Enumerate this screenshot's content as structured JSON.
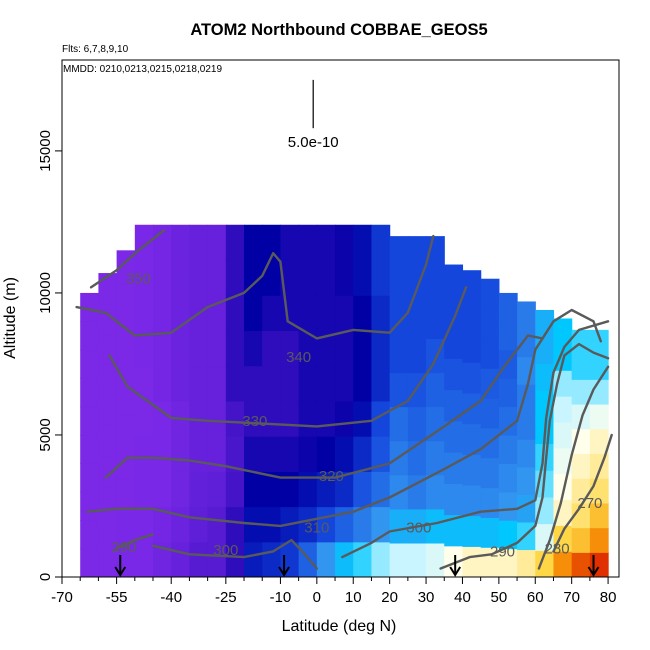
{
  "chart_data": {
    "type": "heatmap",
    "title": "ATOM2 Northbound COBBAE_GEOS5",
    "flights_note": "Flts: 6,7,8,9,10",
    "dates_note": "MMDD: 0210,0213,0215,0218,0219",
    "xlabel": "Latitude (deg N)",
    "ylabel": "Altitude (m)",
    "xlim": [
      -70,
      83
    ],
    "ylim": [
      0,
      18200
    ],
    "xticks": [
      -70,
      -55,
      -40,
      -25,
      -10,
      0,
      10,
      20,
      30,
      40,
      50,
      60,
      70,
      80
    ],
    "xticks_minor": [
      -65,
      -60,
      -50,
      -45,
      -35,
      -30,
      -20,
      -15,
      -5,
      5,
      15,
      25,
      35,
      45,
      55,
      65,
      75
    ],
    "yticks": [
      0,
      5000,
      10000,
      15000
    ],
    "scale_bar": {
      "label": "5.0e-10",
      "x": -1,
      "y_bottom": 15800,
      "y_top": 17500
    },
    "arrows_latitude": [
      -54,
      -9,
      38,
      76
    ],
    "columns": [
      {
        "x": [
          -65,
          -60
        ],
        "top": 10000,
        "v": [
          0.14,
          0.14,
          0.14,
          0.14,
          0.14,
          0.14,
          0.14,
          0.14,
          0.14,
          0.14
        ]
      },
      {
        "x": [
          -60,
          -55
        ],
        "top": 10700,
        "v": [
          0.14,
          0.14,
          0.14,
          0.14,
          0.14,
          0.14,
          0.14,
          0.14,
          0.14,
          0.14
        ]
      },
      {
        "x": [
          -55,
          -50
        ],
        "top": 11500,
        "v": [
          0.15,
          0.15,
          0.14,
          0.14,
          0.14,
          0.14,
          0.14,
          0.14,
          0.14,
          0.14
        ]
      },
      {
        "x": [
          -50,
          -45
        ],
        "top": 12400,
        "v": [
          0.16,
          0.16,
          0.15,
          0.15,
          0.14,
          0.14,
          0.15,
          0.15,
          0.15,
          0.15
        ]
      },
      {
        "x": [
          -45,
          -40
        ],
        "top": 12400,
        "v": [
          0.18,
          0.17,
          0.16,
          0.16,
          0.16,
          0.17,
          0.17,
          0.17,
          0.17,
          0.17
        ]
      },
      {
        "x": [
          -40,
          -35
        ],
        "top": 12400,
        "v": [
          0.2,
          0.19,
          0.18,
          0.18,
          0.18,
          0.19,
          0.19,
          0.19,
          0.19,
          0.19
        ]
      },
      {
        "x": [
          -35,
          -30
        ],
        "top": 12400,
        "v": [
          0.24,
          0.22,
          0.21,
          0.2,
          0.2,
          0.2,
          0.2,
          0.2,
          0.2,
          0.2
        ]
      },
      {
        "x": [
          -30,
          -25
        ],
        "top": 12400,
        "v": [
          0.24,
          0.24,
          0.22,
          0.2,
          0.2,
          0.2,
          0.2,
          0.2,
          0.2,
          0.2
        ]
      },
      {
        "x": [
          -25,
          -20
        ],
        "top": 12400,
        "v": [
          0.3,
          0.3,
          0.28,
          0.27,
          0.28,
          0.3,
          0.3,
          0.3,
          0.3,
          0.3
        ]
      },
      {
        "x": [
          -20,
          -15
        ],
        "top": 12400,
        "v": [
          0.38,
          0.36,
          0.34,
          0.32,
          0.3,
          0.3,
          0.32,
          0.34,
          0.34,
          0.34
        ]
      },
      {
        "x": [
          -15,
          -10
        ],
        "top": 12400,
        "v": [
          0.4,
          0.36,
          0.34,
          0.32,
          0.3,
          0.3,
          0.3,
          0.32,
          0.34,
          0.34
        ]
      },
      {
        "x": [
          -10,
          -5
        ],
        "top": 12400,
        "v": [
          0.42,
          0.38,
          0.34,
          0.32,
          0.3,
          0.3,
          0.3,
          0.32,
          0.32,
          0.32
        ]
      },
      {
        "x": [
          -5,
          0
        ],
        "top": 12400,
        "v": [
          0.48,
          0.4,
          0.36,
          0.33,
          0.32,
          0.32,
          0.32,
          0.32,
          0.32,
          0.32
        ]
      },
      {
        "x": [
          0,
          5
        ],
        "top": 12400,
        "v": [
          0.56,
          0.44,
          0.38,
          0.34,
          0.32,
          0.32,
          0.32,
          0.32,
          0.32,
          0.32
        ]
      },
      {
        "x": [
          5,
          10
        ],
        "top": 12400,
        "v": [
          0.62,
          0.48,
          0.4,
          0.36,
          0.33,
          0.32,
          0.32,
          0.32,
          0.33,
          0.33
        ]
      },
      {
        "x": [
          10,
          15
        ],
        "top": 12400,
        "v": [
          0.66,
          0.52,
          0.46,
          0.4,
          0.36,
          0.34,
          0.34,
          0.34,
          0.36,
          0.36
        ]
      },
      {
        "x": [
          15,
          20
        ],
        "top": 12400,
        "v": [
          0.7,
          0.56,
          0.5,
          0.46,
          0.44,
          0.4,
          0.4,
          0.4,
          0.42,
          0.42
        ]
      },
      {
        "x": [
          20,
          25
        ],
        "top": 12000,
        "v": [
          0.72,
          0.6,
          0.54,
          0.52,
          0.5,
          0.46,
          0.44,
          0.44,
          0.44,
          0.44
        ]
      },
      {
        "x": [
          25,
          30
        ],
        "top": 12000,
        "v": [
          0.72,
          0.6,
          0.52,
          0.5,
          0.48,
          0.46,
          0.44,
          0.44,
          0.44,
          0.44
        ]
      },
      {
        "x": [
          30,
          35
        ],
        "top": 12000,
        "v": [
          0.74,
          0.62,
          0.54,
          0.52,
          0.5,
          0.48,
          0.46,
          0.44,
          0.44,
          0.44
        ]
      },
      {
        "x": [
          35,
          40
        ],
        "top": 11000,
        "v": [
          0.78,
          0.62,
          0.54,
          0.52,
          0.5,
          0.48,
          0.46,
          0.44,
          0.44,
          0.44
        ]
      },
      {
        "x": [
          40,
          45
        ],
        "top": 10800,
        "v": [
          0.8,
          0.62,
          0.54,
          0.52,
          0.5,
          0.48,
          0.46,
          0.44,
          0.44,
          0.44
        ]
      },
      {
        "x": [
          45,
          50
        ],
        "top": 10500,
        "v": [
          0.8,
          0.62,
          0.54,
          0.52,
          0.5,
          0.48,
          0.47,
          0.45,
          0.45,
          0.45
        ]
      },
      {
        "x": [
          50,
          55
        ],
        "top": 10000,
        "v": [
          0.8,
          0.64,
          0.56,
          0.54,
          0.52,
          0.5,
          0.48,
          0.47,
          0.48,
          0.48
        ]
      },
      {
        "x": [
          55,
          60
        ],
        "top": 9700,
        "v": [
          0.82,
          0.66,
          0.58,
          0.56,
          0.54,
          0.52,
          0.52,
          0.54,
          0.52,
          0.52
        ]
      },
      {
        "x": [
          60,
          65
        ],
        "top": 9400,
        "v": [
          0.86,
          0.74,
          0.7,
          0.68,
          0.66,
          0.64,
          0.64,
          0.62,
          0.6,
          0.6
        ]
      },
      {
        "x": [
          65,
          70
        ],
        "top": 9100,
        "v": [
          0.92,
          0.86,
          0.8,
          0.78,
          0.76,
          0.74,
          0.72,
          0.7,
          0.64,
          0.64
        ]
      },
      {
        "x": [
          70,
          75
        ],
        "top": 8700,
        "v": [
          0.96,
          0.88,
          0.84,
          0.82,
          0.8,
          0.78,
          0.74,
          0.7,
          0.66,
          0.66
        ]
      },
      {
        "x": [
          75,
          80
        ],
        "top": 8700,
        "v": [
          0.98,
          0.92,
          0.88,
          0.84,
          0.82,
          0.8,
          0.76,
          0.7,
          0.66,
          0.66
        ]
      }
    ],
    "contours": [
      {
        "label": "270",
        "label_at": [
          75,
          2600
        ],
        "pts": [
          [
            65,
            900
          ],
          [
            68,
            1700
          ],
          [
            72,
            2400
          ],
          [
            76,
            3200
          ],
          [
            79,
            4200
          ],
          [
            81,
            5000
          ]
        ]
      },
      {
        "label": "280",
        "label_at": [
          66,
          1000
        ],
        "pts": [
          [
            61,
            300
          ],
          [
            64,
            1300
          ],
          [
            67,
            2600
          ],
          [
            70,
            4300
          ],
          [
            73,
            5700
          ],
          [
            76,
            6600
          ],
          [
            80,
            7400
          ]
        ]
      },
      {
        "label": "290",
        "label_at": [
          51,
          900
        ],
        "pts": [
          [
            34,
            300
          ],
          [
            42,
            700
          ],
          [
            48,
            800
          ],
          [
            55,
            1200
          ],
          [
            60,
            1800
          ],
          [
            62,
            2800
          ],
          [
            63,
            4200
          ],
          [
            64,
            5500
          ],
          [
            66,
            6800
          ],
          [
            68,
            7800
          ],
          [
            72,
            8200
          ],
          [
            76,
            7900
          ],
          [
            80,
            7700
          ]
        ]
      },
      {
        "label": "300",
        "label_at": [
          -25,
          950
        ],
        "pts": [
          [
            -45,
            1100
          ],
          [
            -35,
            800
          ],
          [
            -20,
            700
          ],
          [
            -12,
            900
          ],
          [
            -7,
            1300
          ],
          [
            -4,
            900
          ],
          [
            0,
            300
          ]
        ]
      },
      {
        "label": "300",
        "label_at": [
          28,
          1750
        ],
        "pts": [
          [
            7,
            700
          ],
          [
            15,
            1200
          ],
          [
            20,
            1600
          ],
          [
            33,
            1900
          ],
          [
            45,
            2300
          ],
          [
            55,
            2400
          ],
          [
            60,
            2700
          ],
          [
            62,
            4000
          ],
          [
            63,
            5600
          ],
          [
            65,
            7200
          ],
          [
            68,
            8100
          ],
          [
            72,
            8700
          ],
          [
            80,
            9000
          ]
        ]
      },
      {
        "label": "290",
        "label_at": [
          -53,
          1050
        ],
        "pts": [
          [
            -55,
            1000
          ],
          [
            -50,
            1300
          ],
          [
            -45,
            1500
          ]
        ]
      },
      {
        "label": "310",
        "label_at": [
          0,
          1750
        ],
        "pts": [
          [
            -63,
            2300
          ],
          [
            -55,
            2400
          ],
          [
            -45,
            2400
          ],
          [
            -35,
            2100
          ],
          [
            -20,
            1900
          ],
          [
            -10,
            1800
          ],
          [
            10,
            2300
          ],
          [
            20,
            2800
          ],
          [
            35,
            3800
          ],
          [
            45,
            4500
          ],
          [
            55,
            5500
          ],
          [
            58,
            6800
          ],
          [
            60,
            8000
          ],
          [
            65,
            9000
          ],
          [
            70,
            9400
          ],
          [
            76,
            9000
          ],
          [
            78,
            8300
          ]
        ]
      },
      {
        "label": "320",
        "label_at": [
          4,
          3550
        ],
        "pts": [
          [
            -58,
            3500
          ],
          [
            -52,
            4200
          ],
          [
            -45,
            4200
          ],
          [
            -35,
            4100
          ],
          [
            -25,
            3900
          ],
          [
            -10,
            3500
          ],
          [
            5,
            3500
          ],
          [
            20,
            4000
          ],
          [
            35,
            5300
          ],
          [
            45,
            6200
          ],
          [
            52,
            7500
          ],
          [
            58,
            8500
          ],
          [
            62,
            8400
          ]
        ]
      },
      {
        "label": "330",
        "label_at": [
          -17,
          5500
        ],
        "pts": [
          [
            -57,
            7800
          ],
          [
            -52,
            6700
          ],
          [
            -40,
            5600
          ],
          [
            -30,
            5500
          ],
          [
            -15,
            5400
          ],
          [
            0,
            5300
          ],
          [
            15,
            5500
          ],
          [
            25,
            6200
          ],
          [
            32,
            7500
          ],
          [
            38,
            9200
          ],
          [
            41,
            10200
          ]
        ]
      },
      {
        "label": "340",
        "label_at": [
          -5,
          7750
        ],
        "pts": [
          [
            -66,
            9500
          ],
          [
            -58,
            9300
          ],
          [
            -50,
            8500
          ],
          [
            -40,
            8600
          ],
          [
            -30,
            9500
          ],
          [
            -20,
            10000
          ],
          [
            -15,
            10600
          ],
          [
            -12,
            11400
          ],
          [
            -10,
            11100
          ],
          [
            -8,
            9000
          ],
          [
            0,
            8400
          ],
          [
            10,
            8700
          ],
          [
            20,
            8600
          ],
          [
            25,
            9300
          ],
          [
            30,
            11000
          ],
          [
            32,
            12000
          ]
        ]
      },
      {
        "label": "350",
        "label_at": [
          -49,
          10500
        ],
        "pts": [
          [
            -62,
            10200
          ],
          [
            -55,
            10800
          ],
          [
            -49,
            11500
          ],
          [
            -44,
            12000
          ],
          [
            -42,
            12200
          ]
        ]
      }
    ]
  }
}
